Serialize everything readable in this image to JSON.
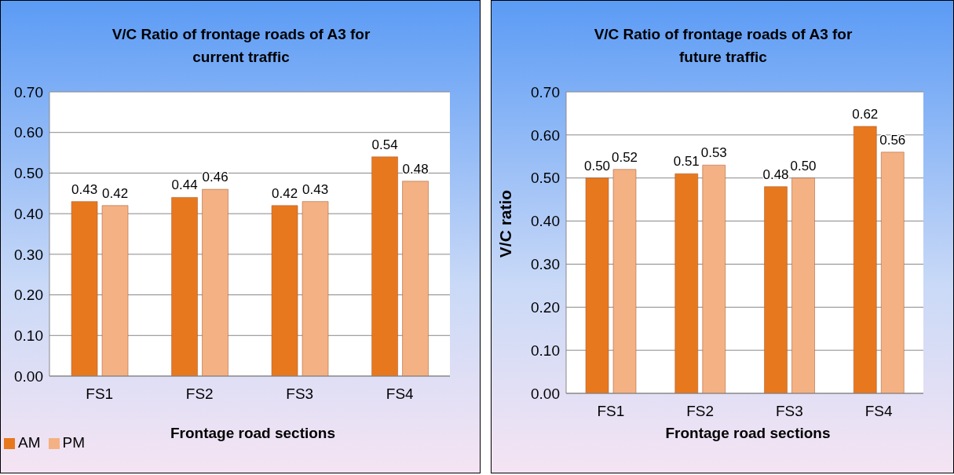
{
  "chart_data": [
    {
      "type": "bar",
      "title": "V/C Ratio of frontage roads of A3 for current traffic",
      "xlabel": "Frontage road sections",
      "categories": [
        "FS1",
        "FS2",
        "FS3",
        "FS4"
      ],
      "series": [
        {
          "name": "AM",
          "color": "#e8781e",
          "values": [
            0.43,
            0.44,
            0.42,
            0.54
          ],
          "value_labels": [
            "0.43",
            "0.44",
            "0.42",
            "0.54"
          ]
        },
        {
          "name": "PM",
          "color": "#f4b183",
          "values": [
            0.42,
            0.46,
            0.43,
            0.48
          ],
          "value_labels": [
            "0.42",
            "0.46",
            "0.43",
            "0.48"
          ]
        }
      ],
      "ylim": [
        0,
        0.7
      ],
      "yticks": [
        {
          "value": 0,
          "label": "0.00"
        },
        {
          "value": 0.1,
          "label": "0.10"
        },
        {
          "value": 0.2,
          "label": "0.20"
        },
        {
          "value": 0.3,
          "label": "0.30"
        },
        {
          "value": 0.4,
          "label": "0.40"
        },
        {
          "value": 0.5,
          "label": "0.50"
        },
        {
          "value": 0.6,
          "label": "0.60"
        },
        {
          "value": 0.7,
          "label": "0.70"
        }
      ],
      "grid": "y",
      "legend": "bottom left"
    },
    {
      "type": "bar",
      "title": "V/C Ratio of frontage roads of A3 for future traffic",
      "xlabel": "Frontage road sections",
      "ylabel": "V/C ratio",
      "categories": [
        "FS1",
        "FS2",
        "FS3",
        "FS4"
      ],
      "series": [
        {
          "color": "#e8781e",
          "values": [
            0.5,
            0.51,
            0.48,
            0.62
          ],
          "value_labels": [
            "0.50",
            "0.51",
            "0.48",
            "0.62"
          ]
        },
        {
          "color": "#f4b183",
          "values": [
            0.52,
            0.53,
            0.5,
            0.56
          ],
          "value_labels": [
            "0.52",
            "0.53",
            "0.50",
            "0.56"
          ]
        }
      ],
      "ylim": [
        0,
        0.7
      ],
      "yticks": [
        {
          "value": 0,
          "label": "0.00"
        },
        {
          "value": 0.1,
          "label": "0.10"
        },
        {
          "value": 0.2,
          "label": "0.20"
        },
        {
          "value": 0.3,
          "label": "0.30"
        },
        {
          "value": 0.4,
          "label": "0.40"
        },
        {
          "value": 0.5,
          "label": "0.50"
        },
        {
          "value": 0.6,
          "label": "0.60"
        },
        {
          "value": 0.7,
          "label": "0.70"
        }
      ],
      "grid": "y"
    }
  ]
}
